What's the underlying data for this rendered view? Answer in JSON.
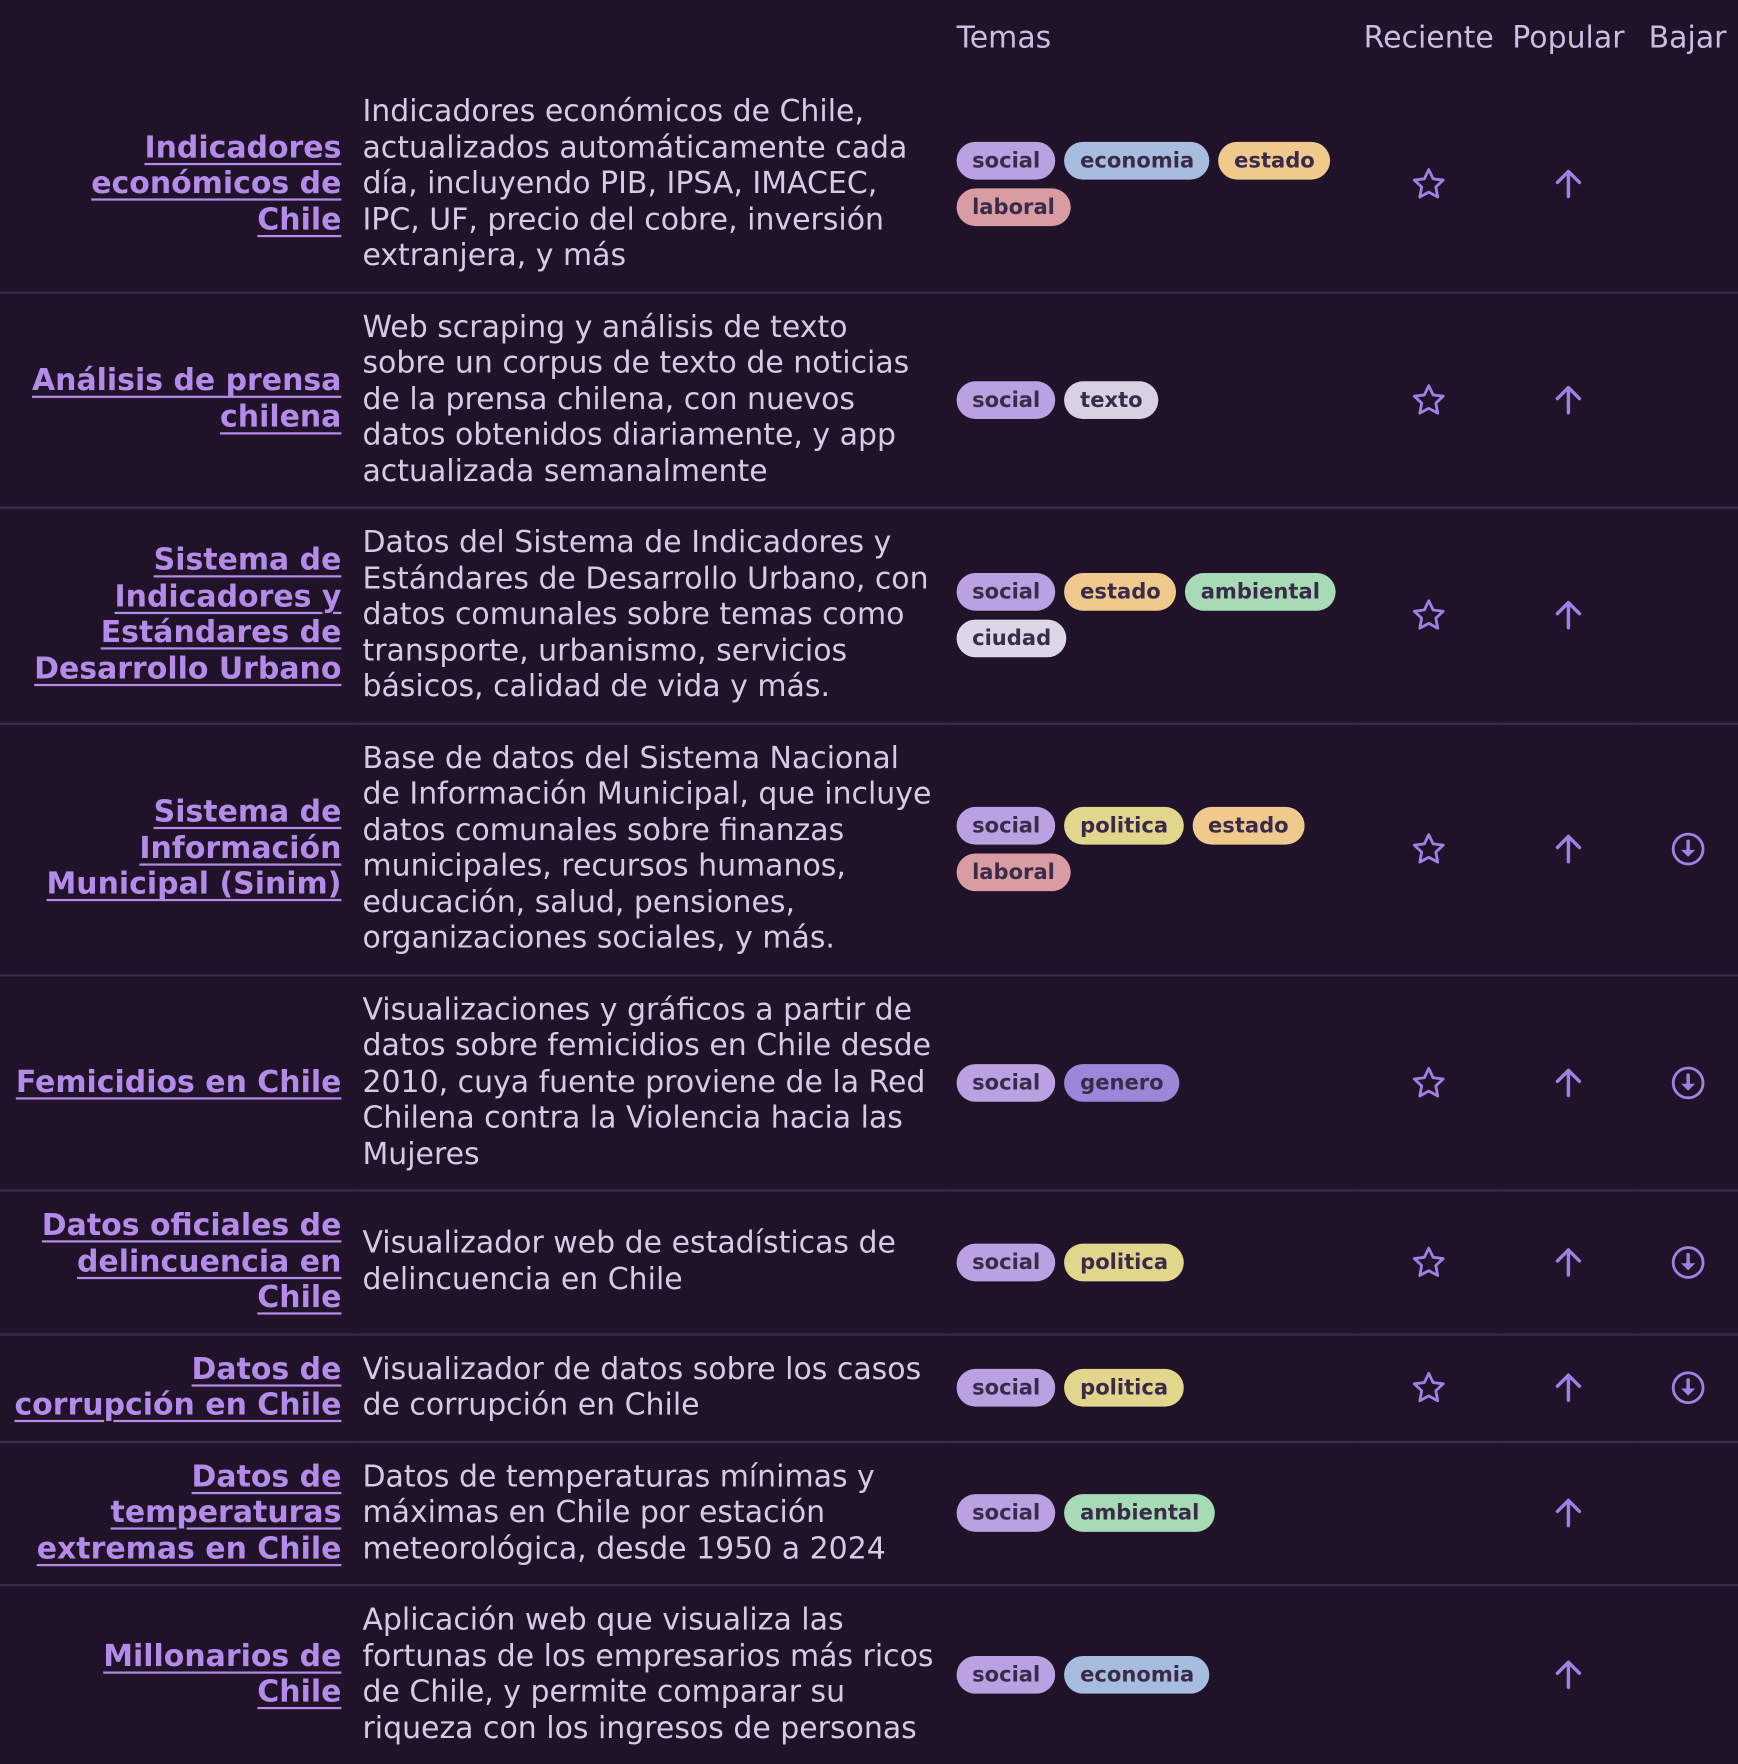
{
  "header": {
    "temas": "Temas",
    "reciente": "Reciente",
    "popular": "Popular",
    "bajar": "Bajar"
  },
  "tag_colors": {
    "social": "#b9a1e2",
    "economia": "#a6bde0",
    "estado": "#f0c98c",
    "laboral": "#d99ca3",
    "texto": "#d8d1e3",
    "ambiental": "#a7dbb5",
    "ciudad": "#dcd6e6",
    "politica": "#e2d58c",
    "genero": "#9c86d9"
  },
  "rows": [
    {
      "title": "Indicadores económicos de Chile",
      "description": "Indicadores económicos de Chile, actualizados automáticamente cada día, incluyendo PIB, IPSA, IMACEC, IPC, UF, precio del cobre, inversión extranjera, y más",
      "tags": [
        "social",
        "economia",
        "estado",
        "laboral"
      ],
      "star": true,
      "popular": true,
      "download": false
    },
    {
      "title": "Análisis de prensa chilena",
      "description": "Web scraping y análisis de texto sobre un corpus de texto de noticias de la prensa chilena, con nuevos datos obtenidos diariamente, y app actualizada semanalmente",
      "tags": [
        "social",
        "texto"
      ],
      "star": true,
      "popular": true,
      "download": false
    },
    {
      "title": "Sistema de Indicadores y Estándares de Desarrollo Urbano",
      "description": "Datos del Sistema de Indicadores y Estándares de Desarrollo Urbano, con datos comunales sobre temas como transporte, urbanismo, servicios básicos, calidad de vida y más.",
      "tags": [
        "social",
        "estado",
        "ambiental",
        "ciudad"
      ],
      "star": true,
      "popular": true,
      "download": false
    },
    {
      "title": "Sistema de Información Municipal (Sinim)",
      "description": "Base de datos del Sistema Nacional de Información Municipal, que incluye datos comunales sobre finanzas municipales, recursos humanos, educación, salud, pensiones, organizaciones sociales, y más.",
      "tags": [
        "social",
        "politica",
        "estado",
        "laboral"
      ],
      "star": true,
      "popular": true,
      "download": true
    },
    {
      "title": "Femicidios en Chile",
      "description": "Visualizaciones y gráficos a partir de datos sobre femicidios en Chile desde 2010, cuya fuente proviene de la Red Chilena contra la Violencia hacia las Mujeres",
      "tags": [
        "social",
        "genero"
      ],
      "star": true,
      "popular": true,
      "download": true
    },
    {
      "title": "Datos oficiales de delincuencia en Chile",
      "description": "Visualizador web de estadísticas de delincuencia en Chile",
      "tags": [
        "social",
        "politica"
      ],
      "star": true,
      "popular": true,
      "download": true
    },
    {
      "title": "Datos de corrupción en Chile",
      "description": "Visualizador de datos sobre los casos de corrupción en Chile",
      "tags": [
        "social",
        "politica"
      ],
      "star": true,
      "popular": true,
      "download": true
    },
    {
      "title": "Datos de temperaturas extremas en Chile",
      "description": "Datos de temperaturas mínimas y máximas en Chile por estación meteorológica, desde 1950 a 2024",
      "tags": [
        "social",
        "ambiental"
      ],
      "star": false,
      "popular": true,
      "download": false
    },
    {
      "title": "Millonarios de Chile",
      "description": "Aplicación web que visualiza las fortunas de los empresarios más ricos de Chile, y permite comparar su riqueza con los ingresos de personas",
      "tags": [
        "social",
        "economia"
      ],
      "star": false,
      "popular": true,
      "download": false
    }
  ]
}
